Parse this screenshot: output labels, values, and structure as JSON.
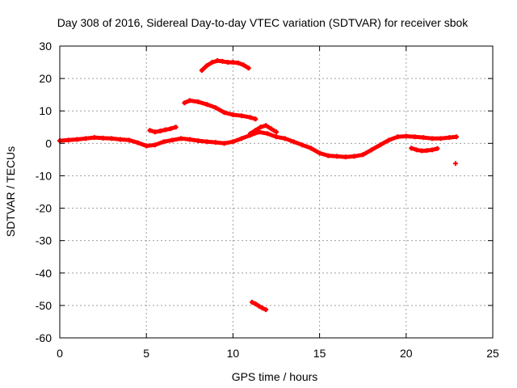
{
  "chart_data": {
    "type": "scatter",
    "title": "Day 308 of 2016, Sidereal Day-to-day VTEC variation (SDTVAR) for receiver sbok",
    "xlabel": "GPS time / hours",
    "ylabel": "SDTVAR / TECUs",
    "xlim": [
      0,
      25
    ],
    "ylim": [
      -60,
      30
    ],
    "xticks": [
      0,
      5,
      10,
      15,
      20,
      25
    ],
    "yticks": [
      -60,
      -50,
      -40,
      -30,
      -20,
      -10,
      0,
      10,
      20,
      30
    ],
    "grid": true,
    "marker_color": "#ff0000",
    "series": [
      {
        "name": "main",
        "x": [
          0.0,
          0.5,
          1.0,
          1.5,
          2.0,
          2.5,
          3.0,
          3.5,
          4.0,
          4.5,
          5.0,
          5.5,
          6.0,
          6.5,
          7.0,
          7.5,
          8.0,
          8.5,
          9.0,
          9.5,
          10.0,
          10.5,
          11.0,
          11.5,
          12.0,
          12.5,
          13.0,
          13.5,
          14.0,
          14.5,
          15.0,
          15.5,
          16.0,
          16.5,
          17.0,
          17.5,
          18.0,
          18.5,
          19.0,
          19.5,
          20.0,
          20.5,
          21.0,
          21.5,
          22.0,
          22.5,
          22.9
        ],
        "y": [
          0.8,
          1.0,
          1.2,
          1.5,
          1.8,
          1.6,
          1.5,
          1.2,
          1.0,
          0.2,
          -0.8,
          -0.5,
          0.5,
          1.0,
          1.5,
          1.2,
          0.8,
          0.5,
          0.3,
          0.0,
          0.5,
          1.5,
          2.5,
          3.5,
          3.0,
          2.0,
          1.5,
          0.5,
          -0.5,
          -1.5,
          -3.0,
          -3.8,
          -4.0,
          -4.2,
          -4.0,
          -3.5,
          -2.0,
          -0.5,
          1.0,
          2.0,
          2.2,
          2.0,
          1.8,
          1.5,
          1.5,
          1.8,
          2.0
        ]
      },
      {
        "name": "arc-high",
        "x": [
          8.2,
          8.5,
          8.8,
          9.1,
          9.4,
          9.7,
          10.0,
          10.3,
          10.6,
          10.9
        ],
        "y": [
          22.5,
          24.0,
          25.0,
          25.5,
          25.3,
          25.0,
          25.0,
          24.8,
          24.2,
          23.2
        ]
      },
      {
        "name": "arc-mid",
        "x": [
          7.2,
          7.5,
          8.0,
          8.5,
          9.0,
          9.5,
          10.0,
          10.5,
          11.0,
          11.3
        ],
        "y": [
          12.5,
          13.2,
          12.8,
          12.0,
          11.0,
          9.5,
          8.8,
          8.5,
          8.0,
          7.5
        ]
      },
      {
        "name": "arc-segment",
        "x": [
          5.2,
          5.5,
          5.8,
          6.1,
          6.4,
          6.7
        ],
        "y": [
          4.0,
          3.5,
          3.8,
          4.2,
          4.5,
          5.0
        ]
      },
      {
        "name": "arc-upper-mid",
        "x": [
          11.0,
          11.3,
          11.6,
          11.9,
          12.2,
          12.5
        ],
        "y": [
          3.0,
          4.0,
          5.0,
          5.5,
          4.5,
          3.5
        ]
      },
      {
        "name": "arc-low",
        "x": [
          11.1,
          11.3,
          11.5,
          11.7,
          11.9
        ],
        "y": [
          -49.0,
          -49.5,
          -50.2,
          -50.8,
          -51.3
        ]
      },
      {
        "name": "arc-late",
        "x": [
          20.3,
          20.6,
          20.9,
          21.2,
          21.5,
          21.8
        ],
        "y": [
          -1.5,
          -2.0,
          -2.3,
          -2.2,
          -2.0,
          -1.6
        ]
      },
      {
        "name": "isolated",
        "x": [
          22.85
        ],
        "y": [
          -6.2
        ]
      }
    ]
  }
}
